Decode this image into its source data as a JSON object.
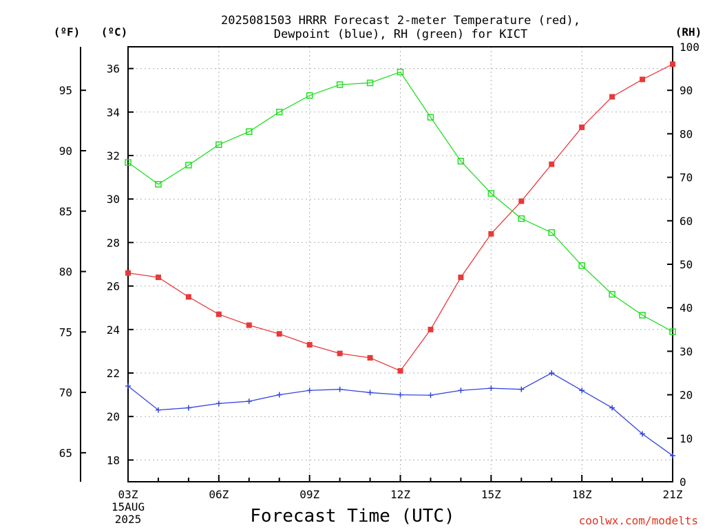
{
  "chart_data": {
    "type": "line",
    "title": [
      "2025081503 HRRR Forecast 2-meter Temperature (red),",
      "Dewpoint (blue), RH (green) for KICT"
    ],
    "xlabel": "Forecast Time (UTC)",
    "x": [
      "03Z",
      "04Z",
      "05Z",
      "06Z",
      "07Z",
      "08Z",
      "09Z",
      "10Z",
      "11Z",
      "12Z",
      "13Z",
      "14Z",
      "15Z",
      "16Z",
      "17Z",
      "18Z",
      "19Z",
      "20Z",
      "21Z"
    ],
    "x_tick_labels": [
      "03Z",
      "06Z",
      "09Z",
      "12Z",
      "15Z",
      "18Z",
      "21Z"
    ],
    "date_labels": [
      "15AUG",
      "2025"
    ],
    "axes": {
      "fahrenheit": {
        "unit": "(ºF)",
        "ticks": [
          65,
          70,
          75,
          80,
          85,
          90,
          95
        ],
        "side": "far-left"
      },
      "celsius": {
        "unit": "(ºC)",
        "ticks": [
          18,
          20,
          22,
          24,
          26,
          28,
          30,
          32,
          34,
          36
        ],
        "ylim": [
          17,
          37
        ],
        "side": "left"
      },
      "rh": {
        "unit": "(RH)",
        "ticks": [
          0,
          10,
          20,
          30,
          40,
          50,
          60,
          70,
          80,
          90,
          100
        ],
        "ylim": [
          0,
          100
        ],
        "side": "right"
      }
    },
    "grid": true,
    "series": [
      {
        "name": "2-meter Temperature",
        "axis": "celsius",
        "color": "#e8393a",
        "marker": "filled-square",
        "values": [
          26.6,
          26.4,
          25.5,
          24.7,
          24.2,
          23.8,
          23.3,
          22.9,
          22.7,
          22.1,
          24.0,
          26.4,
          28.4,
          29.9,
          31.6,
          33.3,
          34.7,
          35.5,
          36.2
        ]
      },
      {
        "name": "Dewpoint",
        "axis": "celsius",
        "color": "#3344dd",
        "marker": "plus",
        "values": [
          21.4,
          20.3,
          20.4,
          20.6,
          20.7,
          21.0,
          21.2,
          21.25,
          21.1,
          21.0,
          20.98,
          21.2,
          21.3,
          21.25,
          22.0,
          21.2,
          20.4,
          19.2,
          18.2
        ]
      },
      {
        "name": "RH",
        "axis": "rh",
        "color": "#22dd22",
        "marker": "open-square",
        "values": [
          73.4,
          68.4,
          72.8,
          77.5,
          80.5,
          85.0,
          88.8,
          91.3,
          91.7,
          94.2,
          83.8,
          73.7,
          66.3,
          60.5,
          57.3,
          49.7,
          43.1,
          38.3,
          34.5
        ]
      }
    ]
  },
  "credit": "coolwx.com/modelts"
}
